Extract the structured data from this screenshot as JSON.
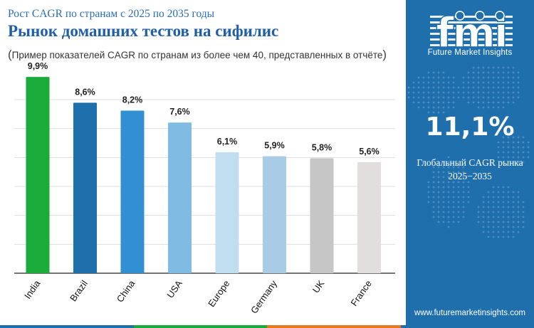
{
  "header": {
    "subtitle": "Рост CAGR по странам с 2025 по 2035 годы",
    "title": "Рынок домашних тестов на сифилис",
    "note_open": "(",
    "note_text": "Пример показателей CAGR по странам из более чем 40, представленных в отчёте",
    "note_close": ")"
  },
  "chart_data": {
    "type": "bar",
    "categories": [
      "India",
      "Brazil",
      "China",
      "USA",
      "Europe",
      "Germany",
      "UK",
      "France"
    ],
    "values": [
      9.9,
      8.6,
      8.2,
      7.6,
      6.1,
      5.9,
      5.8,
      5.6
    ],
    "data_labels": [
      "9,9%",
      "8,6%",
      "8,2%",
      "7,6%",
      "6,1%",
      "5,9%",
      "5,8%",
      "5,6%"
    ],
    "colors": [
      "#1aab3a",
      "#1f6fad",
      "#3290d2",
      "#7fbbe2",
      "#c1def1",
      "#a9cce6",
      "#c6c6c6",
      "#e3dede"
    ],
    "ylim": [
      0,
      10.3
    ],
    "grid": true,
    "title": "",
    "xlabel": "",
    "ylabel": ""
  },
  "sidebar": {
    "logo_text": "fmi",
    "logo_subtitle": "Future Market Insights",
    "stat_value": "11,1%",
    "stat_label_line1": "Глобальный CAGR рынка",
    "stat_label_line2": "2025−2035",
    "website": "www.futuremarketinsights.com",
    "background_color": "#1f6fad"
  },
  "footer_colors": [
    "#1f6fad",
    "#1aab3a",
    "#e87722",
    "#1f6fad"
  ]
}
